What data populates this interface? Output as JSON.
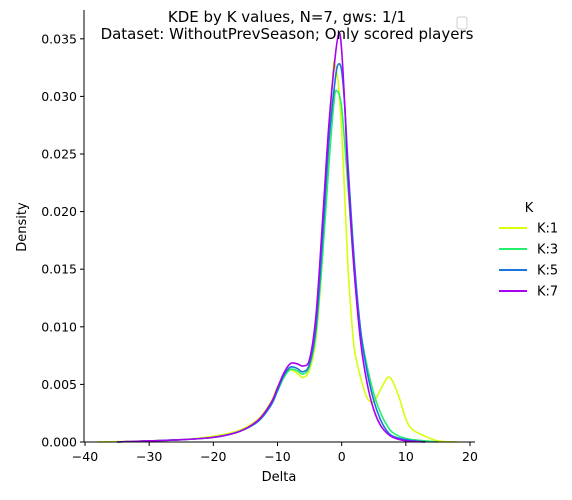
{
  "chart_data": {
    "type": "line",
    "title_line1": "KDE by K values, N=7, gws: 1/1",
    "title_line2": "Dataset: WithoutPrevSeason; Only scored players",
    "xlabel": "Delta",
    "ylabel": "Density",
    "xlim": [
      -40,
      20
    ],
    "ylim": [
      0,
      0.0375
    ],
    "x_ticks": [
      -40,
      -30,
      -20,
      -10,
      0,
      10,
      20
    ],
    "y_ticks": [
      0.0,
      0.005,
      0.01,
      0.015,
      0.02,
      0.025,
      0.03,
      0.035
    ],
    "x_tick_labels": [
      "−40",
      "−30",
      "−20",
      "−10",
      "0",
      "10",
      "20"
    ],
    "y_tick_labels": [
      "0.000",
      "0.005",
      "0.010",
      "0.015",
      "0.020",
      "0.025",
      "0.030",
      "0.035"
    ],
    "legend_title": "K",
    "legend_position": "right",
    "series": [
      {
        "name": "K:1",
        "color": "#d7ff0a",
        "points": [
          [
            -38,
            0
          ],
          [
            -30,
            0.0001
          ],
          [
            -25,
            0.0002
          ],
          [
            -20,
            0.0005
          ],
          [
            -16,
            0.001
          ],
          [
            -13,
            0.002
          ],
          [
            -11,
            0.0035
          ],
          [
            -10,
            0.0048
          ],
          [
            -9,
            0.0058
          ],
          [
            -8.5,
            0.0062
          ],
          [
            -8,
            0.0063
          ],
          [
            -7,
            0.006
          ],
          [
            -6,
            0.0056
          ],
          [
            -5,
            0.0063
          ],
          [
            -4,
            0.009
          ],
          [
            -3,
            0.016
          ],
          [
            -2,
            0.026
          ],
          [
            -1.3,
            0.0325
          ],
          [
            -1,
            0.0327
          ],
          [
            -0.5,
            0.031
          ],
          [
            0,
            0.027
          ],
          [
            0.5,
            0.021
          ],
          [
            1,
            0.015
          ],
          [
            1.5,
            0.011
          ],
          [
            2,
            0.008
          ],
          [
            3,
            0.0055
          ],
          [
            4,
            0.0038
          ],
          [
            5,
            0.0035
          ],
          [
            6,
            0.0045
          ],
          [
            7,
            0.0055
          ],
          [
            7.5,
            0.0056
          ],
          [
            8,
            0.0052
          ],
          [
            9,
            0.0038
          ],
          [
            10,
            0.002
          ],
          [
            11,
            0.0011
          ],
          [
            13,
            0.0005
          ],
          [
            15,
            0.0001
          ],
          [
            18,
            0
          ]
        ]
      },
      {
        "name": "K:3",
        "color": "#22f06a",
        "points": [
          [
            -35,
            0
          ],
          [
            -30,
            0.0001
          ],
          [
            -25,
            0.0002
          ],
          [
            -20,
            0.0004
          ],
          [
            -16,
            0.0009
          ],
          [
            -13,
            0.0018
          ],
          [
            -11,
            0.0032
          ],
          [
            -10,
            0.0044
          ],
          [
            -9,
            0.0056
          ],
          [
            -8,
            0.0063
          ],
          [
            -7,
            0.0062
          ],
          [
            -6,
            0.0059
          ],
          [
            -5,
            0.0066
          ],
          [
            -4,
            0.0095
          ],
          [
            -3,
            0.016
          ],
          [
            -2,
            0.024
          ],
          [
            -1.2,
            0.0295
          ],
          [
            -0.8,
            0.0305
          ],
          [
            0,
            0.029
          ],
          [
            1,
            0.022
          ],
          [
            2,
            0.0145
          ],
          [
            3,
            0.0095
          ],
          [
            4,
            0.0065
          ],
          [
            5,
            0.0042
          ],
          [
            6,
            0.0026
          ],
          [
            7,
            0.0015
          ],
          [
            8,
            0.0008
          ],
          [
            10,
            0.0003
          ],
          [
            13,
            0.0001
          ],
          [
            15,
            0
          ]
        ]
      },
      {
        "name": "K:5",
        "color": "#1a74e0",
        "points": [
          [
            -35,
            0
          ],
          [
            -30,
            0.0001
          ],
          [
            -25,
            0.0002
          ],
          [
            -20,
            0.0004
          ],
          [
            -16,
            0.0009
          ],
          [
            -13,
            0.0018
          ],
          [
            -11,
            0.0032
          ],
          [
            -10,
            0.0045
          ],
          [
            -9,
            0.0058
          ],
          [
            -8,
            0.0065
          ],
          [
            -7,
            0.0064
          ],
          [
            -6,
            0.0061
          ],
          [
            -5,
            0.0068
          ],
          [
            -4,
            0.01
          ],
          [
            -3,
            0.0175
          ],
          [
            -2,
            0.026
          ],
          [
            -1,
            0.0315
          ],
          [
            -0.5,
            0.0328
          ],
          [
            0,
            0.0322
          ],
          [
            0.5,
            0.029
          ],
          [
            1,
            0.024
          ],
          [
            2,
            0.0155
          ],
          [
            3,
            0.0095
          ],
          [
            4,
            0.006
          ],
          [
            5,
            0.0036
          ],
          [
            6,
            0.002
          ],
          [
            7,
            0.001
          ],
          [
            8,
            0.0005
          ],
          [
            10,
            0.0002
          ],
          [
            13,
            0
          ]
        ]
      },
      {
        "name": "K:7",
        "color": "#a800f0",
        "points": [
          [
            -35,
            0
          ],
          [
            -30,
            0.0001
          ],
          [
            -25,
            0.0002
          ],
          [
            -20,
            0.0004
          ],
          [
            -16,
            0.0009
          ],
          [
            -13,
            0.0019
          ],
          [
            -11,
            0.0034
          ],
          [
            -10,
            0.0047
          ],
          [
            -9,
            0.006
          ],
          [
            -8,
            0.0068
          ],
          [
            -7,
            0.0068
          ],
          [
            -6,
            0.0066
          ],
          [
            -5,
            0.0072
          ],
          [
            -4,
            0.011
          ],
          [
            -3,
            0.019
          ],
          [
            -2,
            0.0275
          ],
          [
            -1,
            0.0335
          ],
          [
            -0.4,
            0.0355
          ],
          [
            0,
            0.034
          ],
          [
            0.5,
            0.029
          ],
          [
            1,
            0.023
          ],
          [
            2,
            0.0145
          ],
          [
            3,
            0.0085
          ],
          [
            4,
            0.005
          ],
          [
            5,
            0.0028
          ],
          [
            6,
            0.0015
          ],
          [
            7,
            0.0008
          ],
          [
            8,
            0.0004
          ],
          [
            10,
            0.0001
          ],
          [
            13,
            0
          ]
        ]
      }
    ]
  }
}
